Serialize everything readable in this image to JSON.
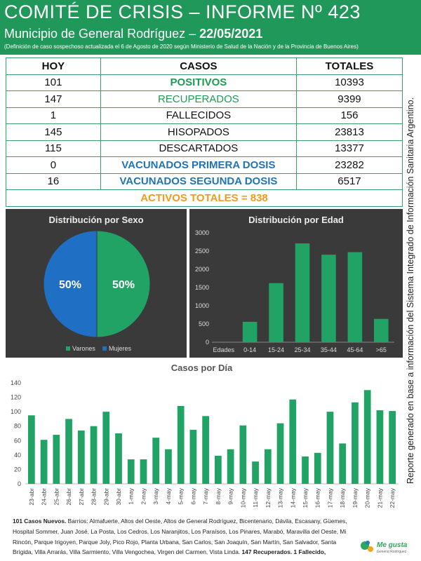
{
  "header": {
    "title": "COMITÉ DE CRISIS – INFORME Nº 423",
    "subtitle_prefix": "Municipio de General Rodríguez – ",
    "subtitle_date": "22/05/2021",
    "note": "(Definición de caso sospechoso actualizada el 6 de Agosto de 2020 según Ministerio de Salud de la Nación y de la Provincia de Buenos Aires)"
  },
  "table": {
    "headers": [
      "HOY",
      "CASOS",
      "TOTALES"
    ],
    "rows": [
      {
        "hoy": "101",
        "caso": "POSITIVOS",
        "total": "10393"
      },
      {
        "hoy": "147",
        "caso": "RECUPERADOS",
        "total": "9399"
      },
      {
        "hoy": "1",
        "caso": "FALLECIDOS",
        "total": "156"
      },
      {
        "hoy": "145",
        "caso": "HISOPADOS",
        "total": "23813"
      },
      {
        "hoy": "115",
        "caso": "DESCARTADOS",
        "total": "13377"
      },
      {
        "hoy": "0",
        "caso": "VACUNADOS PRIMERA DOSIS",
        "total": "23282"
      },
      {
        "hoy": "16",
        "caso": "VACUNADOS SEGUNDA DOSIS",
        "total": "6517"
      }
    ],
    "activos": "ACTIVOS TOTALES = 838"
  },
  "side_text": "Reporte generado en base a información del Sistema Integrado de Información Sanitaria Argentino.",
  "colors": {
    "brand_green": "#20985a",
    "bar_green": "#21a366",
    "pie_blue": "#1f6fc4",
    "accent_blue": "#1f74b8",
    "accent_orange": "#f39a1e",
    "panel_dark": "#3a3a3a"
  },
  "chart_data": [
    {
      "type": "pie",
      "title": "Distribución por Sexo",
      "labels": [
        "Varones",
        "Mujeres"
      ],
      "values": [
        50,
        50
      ],
      "value_labels": [
        "50%",
        "50%"
      ],
      "legend": "bottom"
    },
    {
      "type": "bar",
      "title": "Distribución por Edad",
      "categories_label": "Edades",
      "categories": [
        "0-14",
        "15-24",
        "25-34",
        "35-44",
        "45-64",
        ">65"
      ],
      "values": [
        560,
        1620,
        2710,
        2400,
        2470,
        640
      ],
      "ylim": [
        0,
        3000
      ],
      "yticks": [
        0,
        500,
        1000,
        1500,
        2000,
        2500,
        3000
      ],
      "grid": false
    },
    {
      "type": "bar",
      "title": "Casos por Día",
      "categories": [
        "23-abr",
        "24-abr",
        "25-abr",
        "26-abr",
        "27-abr",
        "28-abr",
        "29-abr",
        "30-abr",
        "1-may",
        "2-may",
        "3-may",
        "4-may",
        "5-may",
        "6-may",
        "7-may",
        "8-may",
        "9-may",
        "10-may",
        "11-may",
        "12-may",
        "13-may",
        "14-may",
        "15-may",
        "16-may",
        "17-may",
        "18-may",
        "19-may",
        "20-may",
        "21-may",
        "22-may"
      ],
      "values": [
        95,
        61,
        68,
        90,
        74,
        80,
        100,
        70,
        34,
        34,
        64,
        48,
        108,
        75,
        94,
        39,
        48,
        81,
        31,
        48,
        84,
        117,
        38,
        43,
        100,
        56,
        113,
        130,
        102,
        101
      ],
      "ylim": [
        0,
        140
      ],
      "yticks": [
        0,
        20,
        40,
        60,
        80,
        100,
        120,
        140
      ],
      "grid": false
    }
  ],
  "footer": {
    "lead": "101 Casos Nuevos.",
    "barrios": " Barrios: Almafuerte, Altos del Oeste, Altos de General Rodríguez, Bicentenario, Dávila, Escasany, Güemes, Hospital Sommer, Juan José, La Posta, Los Cedros, Los Naranjitos, Los Paraísos, Los Pinares, Marabó, Maravilla del Oeste, Mi Rincón, Parque Irigoyen, Parque Joly, Pico Rojo, Planta Urbana, San Carlos, San Joaquín, San Martín, San Salvador, Santa Brígida, Villa Arrarás, Villa Sarmiento, Villa Vengochea, Virgen del Carmen, Vista Linda.",
    "tail": " 147 Recuperados. 1 Fallecido,"
  },
  "logo": {
    "text": "Me gusta",
    "subtext": "General Rodríguez"
  }
}
